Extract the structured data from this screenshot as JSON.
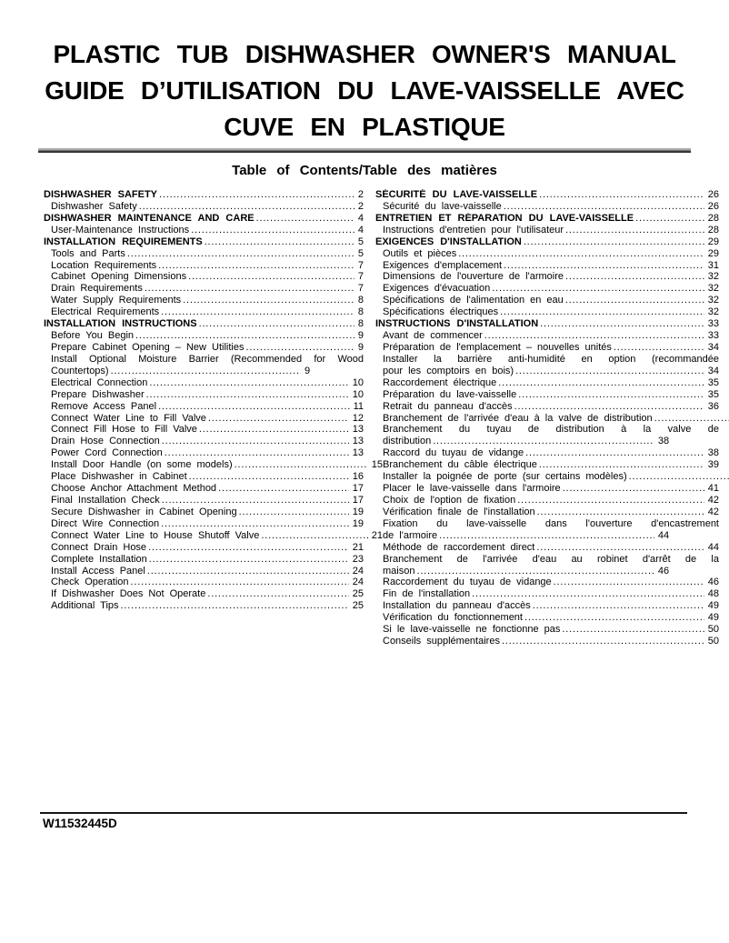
{
  "page": {
    "title_lines": [
      "PLASTIC TUB DISHWASHER OWNER'S MANUAL",
      "GUIDE D’UTILISATION DU LAVE-VAISSELLE AVEC",
      "CUVE EN PLASTIQUE"
    ],
    "toc_heading": "Table of Contents/Table des matières",
    "footer_code": "W11532445D"
  },
  "colors": {
    "text": "#000000",
    "background": "#ffffff",
    "divider_top": "#ababab",
    "divider_bottom": "#2e2e2e"
  },
  "toc": {
    "left_column": [
      {
        "text": "DISHWASHER SAFETY",
        "page": "2",
        "bold": true
      },
      {
        "text": "Dishwasher Safety",
        "page": "2",
        "indent": true
      },
      {
        "text": "DISHWASHER MAINTENANCE AND CARE",
        "page": "4",
        "bold": true
      },
      {
        "text": "User-Maintenance Instructions",
        "page": "4",
        "indent": true
      },
      {
        "text": "INSTALLATION REQUIREMENTS",
        "page": "5",
        "bold": true
      },
      {
        "text": "Tools and Parts",
        "page": "5",
        "indent": true
      },
      {
        "text": "Location Requirements",
        "page": "7",
        "indent": true
      },
      {
        "text": "Cabinet Opening Dimensions",
        "page": "7",
        "indent": true
      },
      {
        "text": "Drain Requirements",
        "page": "7",
        "indent": true
      },
      {
        "text": "Water Supply Requirements",
        "page": "8",
        "indent": true
      },
      {
        "text": "Electrical Requirements",
        "page": "8",
        "indent": true
      },
      {
        "text": "INSTALLATION INSTRUCTIONS",
        "page": "8",
        "bold": true
      },
      {
        "text": "Before You Begin",
        "page": "9",
        "indent": true
      },
      {
        "text": "Prepare Cabinet Opening – New Utilities",
        "page": "9",
        "indent": true
      },
      {
        "text": "Install Optional Moisture Barrier (Recommended for Wood",
        "page": "",
        "indent": true,
        "fill": true
      },
      {
        "text": "Countertops)",
        "page": "9",
        "indent": true,
        "short": true
      },
      {
        "text": "Electrical Connection",
        "page": "10",
        "indent": true
      },
      {
        "text": "Prepare Dishwasher",
        "page": "10",
        "indent": true
      },
      {
        "text": "Remove Access Panel",
        "page": "11",
        "indent": true
      },
      {
        "text": "Connect Water Line to Fill Valve",
        "page": "12",
        "indent": true
      },
      {
        "text": "Connect Fill Hose to Fill Valve",
        "page": "13",
        "indent": true
      },
      {
        "text": "Drain Hose Connection",
        "page": "13",
        "indent": true
      },
      {
        "text": "Power Cord Connection",
        "page": "13",
        "indent": true
      },
      {
        "text": "Install Door Handle (on some models)",
        "page": "15",
        "indent": true,
        "gutter": true
      },
      {
        "text": "Place Dishwasher in Cabinet",
        "page": "16",
        "indent": true
      },
      {
        "text": "Choose Anchor Attachment Method",
        "page": "17",
        "indent": true
      },
      {
        "text": "Final Installation Check",
        "page": "17",
        "indent": true
      },
      {
        "text": "Secure Dishwasher in Cabinet Opening",
        "page": "19",
        "indent": true
      },
      {
        "text": "Direct Wire Connection",
        "page": "19",
        "indent": true
      },
      {
        "text": "Connect Water Line to House Shutoff Valve",
        "page": "21",
        "indent": true,
        "gutter": true
      },
      {
        "text": "Connect Drain Hose",
        "page": "21",
        "indent": true
      },
      {
        "text": "Complete Installation",
        "page": "23",
        "indent": true
      },
      {
        "text": "Install Access Panel",
        "page": "24",
        "indent": true
      },
      {
        "text": "Check Operation",
        "page": "24",
        "indent": true
      },
      {
        "text": "If Dishwasher Does Not Operate",
        "page": "25",
        "indent": true
      },
      {
        "text": "Additional Tips",
        "page": "25",
        "indent": true
      }
    ],
    "right_column": [
      {
        "text": "SÉCURITÉ DU LAVE-VAISSELLE",
        "page": "26",
        "bold": true
      },
      {
        "text": "Sécurité du lave-vaisselle",
        "page": "26",
        "indent": true
      },
      {
        "text": "ENTRETIEN ET RÉPARATION DU LAVE-VAISSELLE",
        "page": "28",
        "bold": true
      },
      {
        "text": "Instructions d'entretien pour l'utilisateur",
        "page": "28",
        "indent": true
      },
      {
        "text": "EXIGENCES D'INSTALLATION",
        "page": "29",
        "bold": true
      },
      {
        "text": "Outils et pièces",
        "page": "29",
        "indent": true
      },
      {
        "text": "Exigences d'emplacement",
        "page": "31",
        "indent": true
      },
      {
        "text": "Dimensions de l'ouverture de l'armoire",
        "page": "32",
        "indent": true
      },
      {
        "text": "Exigences d'évacuation",
        "page": "32",
        "indent": true
      },
      {
        "text": "Spécifications de l'alimentation en eau",
        "page": "32",
        "indent": true
      },
      {
        "text": "Spécifications électriques",
        "page": "32",
        "indent": true
      },
      {
        "text": "INSTRUCTIONS D'INSTALLATION",
        "page": "33",
        "bold": true
      },
      {
        "text": "Avant de commencer",
        "page": "33",
        "indent": true
      },
      {
        "text": "Préparation de l'emplacement – nouvelles unités",
        "page": "34",
        "indent": true
      },
      {
        "text": "Installer la barrière anti-humidité en option (recommandée",
        "page": "",
        "indent": true,
        "fill": true
      },
      {
        "text": "pour les comptoirs en bois)",
        "page": "34",
        "indent": true
      },
      {
        "text": "Raccordement électrique",
        "page": "35",
        "indent": true
      },
      {
        "text": "Préparation du lave-vaisselle",
        "page": "35",
        "indent": true
      },
      {
        "text": "Retrait du panneau d'accès",
        "page": "36",
        "indent": true
      },
      {
        "text": "Branchement de l'arrivée d'eau à la valve de distribution",
        "page": "",
        "indent": true,
        "cut": true
      },
      {
        "text": "Branchement du tuyau de distribution à la valve de",
        "page": "",
        "indent": true,
        "fill": true
      },
      {
        "text": "distribution",
        "page": "38",
        "indent": true,
        "short": true
      },
      {
        "text": "Raccord du tuyau de vidange",
        "page": "38",
        "indent": true
      },
      {
        "text": "Branchement du câble électrique",
        "page": "39",
        "indent": true
      },
      {
        "text": "Installer la poignée de porte (sur certains modèles)",
        "page": "4",
        "indent": true,
        "cut": true
      },
      {
        "text": "Placer le lave-vaisselle dans l'armoire",
        "page": "41",
        "indent": true
      },
      {
        "text": "Choix de l'option de fixation",
        "page": "42",
        "indent": true
      },
      {
        "text": "Vérification finale de l'installation",
        "page": "42",
        "indent": true
      },
      {
        "text": "Fixation du lave-vaisselle dans l'ouverture d'encastrement",
        "page": "",
        "indent": true,
        "fill": true
      },
      {
        "text": "de l'armoire",
        "page": "44",
        "indent": true,
        "short": true
      },
      {
        "text": "Méthode de raccordement direct",
        "page": "44",
        "indent": true
      },
      {
        "text": "Branchement de l'arrivée d'eau au robinet d'arrêt de la",
        "page": "",
        "indent": true,
        "fill": true
      },
      {
        "text": "maison",
        "page": "46",
        "indent": true,
        "short": true
      },
      {
        "text": "Raccordement du tuyau de vidange",
        "page": "46",
        "indent": true
      },
      {
        "text": "Fin de l'installation",
        "page": "48",
        "indent": true
      },
      {
        "text": "Installation du panneau d'accès",
        "page": "49",
        "indent": true
      },
      {
        "text": "Vérification du fonctionnement",
        "page": "49",
        "indent": true
      },
      {
        "text": "Si le lave-vaisselle ne fonctionne pas",
        "page": "50",
        "indent": true
      },
      {
        "text": "Conseils supplémentaires",
        "page": "50",
        "indent": true
      }
    ]
  }
}
